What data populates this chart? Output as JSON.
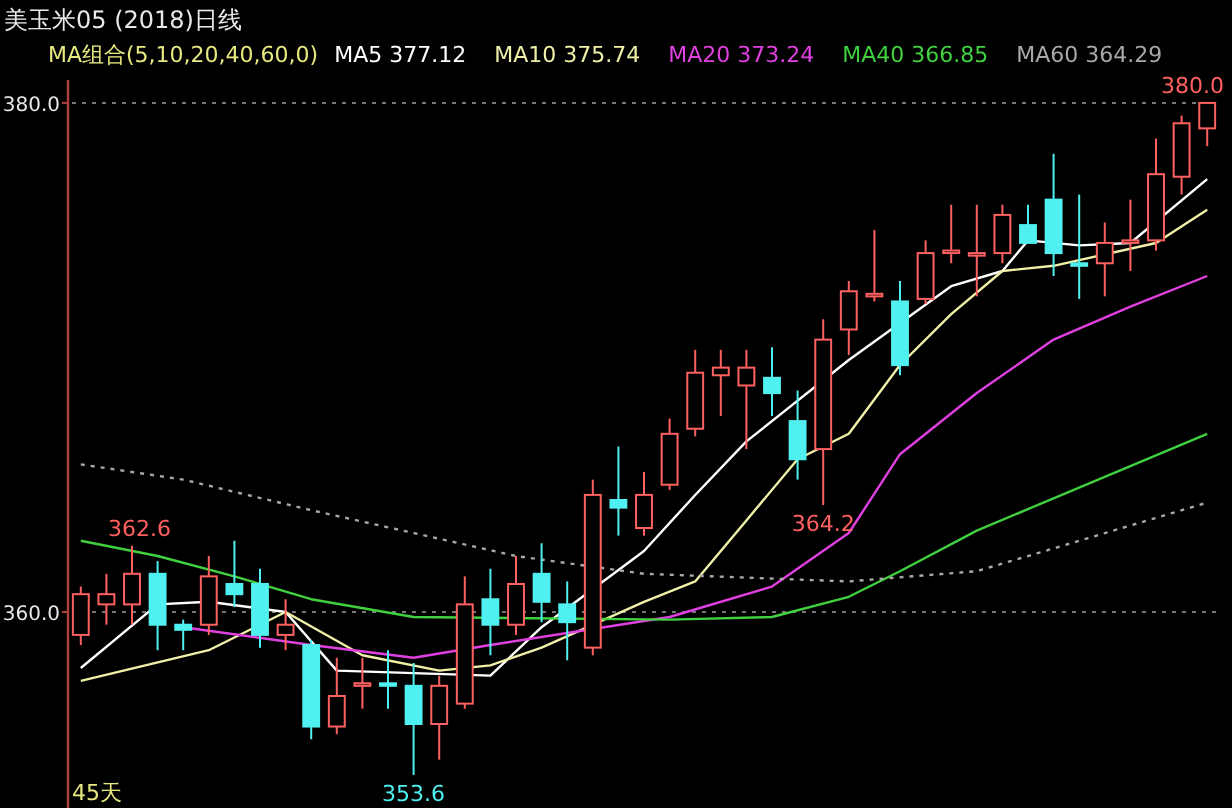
{
  "chart_data": {
    "type": "candlestick",
    "title": "美玉米05 (2018)日线",
    "subtitle": "MA组合(5,10,20,40,60,0)",
    "categories": [
      null,
      null,
      null,
      null,
      null,
      null,
      null,
      null,
      null,
      null,
      null,
      null,
      null,
      null,
      null,
      null,
      null,
      null,
      null,
      null,
      null,
      null,
      null,
      null,
      null,
      null,
      null,
      null,
      null,
      null,
      null,
      null,
      null,
      null,
      null,
      null,
      null,
      null,
      null,
      null,
      null,
      null,
      null,
      null,
      null
    ],
    "ohlc": [
      [
        359.1,
        361.0,
        358.7,
        360.7
      ],
      [
        360.3,
        361.5,
        359.5,
        360.7
      ],
      [
        360.3,
        362.6,
        359.5,
        361.5
      ],
      [
        361.5,
        362.0,
        358.5,
        359.5
      ],
      [
        359.5,
        359.7,
        358.5,
        359.3
      ],
      [
        359.5,
        362.2,
        359.1,
        361.4
      ],
      [
        361.1,
        362.8,
        360.2,
        360.7
      ],
      [
        361.1,
        361.7,
        358.6,
        359.1
      ],
      [
        359.1,
        360.5,
        358.5,
        359.5
      ],
      [
        358.7,
        358.9,
        355.0,
        355.5
      ],
      [
        355.5,
        358.2,
        355.2,
        356.7
      ],
      [
        357.1,
        358.2,
        356.2,
        357.2
      ],
      [
        357.2,
        358.5,
        356.2,
        357.1
      ],
      [
        357.1,
        358.0,
        353.6,
        355.6
      ],
      [
        355.6,
        357.5,
        354.2,
        357.1
      ],
      [
        356.4,
        361.4,
        356.2,
        360.3
      ],
      [
        360.5,
        361.7,
        358.3,
        359.5
      ],
      [
        359.5,
        362.2,
        359.1,
        361.1
      ],
      [
        361.5,
        362.7,
        359.6,
        360.4
      ],
      [
        360.3,
        361.2,
        358.1,
        359.6
      ],
      [
        358.6,
        365.2,
        358.3,
        364.6
      ],
      [
        364.4,
        366.5,
        363.0,
        364.1
      ],
      [
        363.3,
        365.5,
        363.0,
        364.6
      ],
      [
        365.0,
        367.6,
        364.8,
        367.0
      ],
      [
        367.2,
        370.3,
        366.9,
        369.4
      ],
      [
        369.3,
        370.3,
        367.7,
        369.6
      ],
      [
        368.9,
        370.3,
        366.4,
        369.6
      ],
      [
        369.2,
        370.4,
        367.7,
        368.6
      ],
      [
        367.5,
        368.7,
        365.2,
        366.0
      ],
      [
        366.4,
        371.5,
        364.2,
        370.7
      ],
      [
        371.1,
        373.0,
        370.1,
        372.6
      ],
      [
        372.4,
        375.0,
        372.2,
        372.5
      ],
      [
        372.2,
        373.0,
        369.3,
        369.7
      ],
      [
        372.3,
        374.6,
        372.1,
        374.1
      ],
      [
        374.1,
        376.0,
        373.7,
        374.2
      ],
      [
        374.0,
        376.0,
        372.4,
        374.1
      ],
      [
        374.1,
        376.0,
        373.7,
        375.6
      ],
      [
        375.2,
        376.0,
        374.5,
        374.5
      ],
      [
        376.2,
        378.0,
        373.2,
        374.1
      ],
      [
        373.7,
        376.4,
        372.3,
        373.6
      ],
      [
        373.7,
        375.3,
        372.4,
        374.5
      ],
      [
        374.5,
        376.2,
        373.4,
        374.6
      ],
      [
        374.6,
        378.6,
        374.2,
        377.2
      ],
      [
        377.1,
        379.5,
        376.4,
        379.2
      ],
      [
        379.0,
        380.0,
        378.3,
        380.0
      ]
    ],
    "colors": [
      "#ff6060",
      "#ff6060",
      "#ff6060",
      "#50f0f0",
      "#50f0f0",
      "#ff6060",
      "#50f0f0",
      "#50f0f0",
      "#ff6060",
      "#50f0f0",
      "#ff6060",
      "#ff6060",
      "#50f0f0",
      "#50f0f0",
      "#ff6060",
      "#ff6060",
      "#50f0f0",
      "#ff6060",
      "#50f0f0",
      "#50f0f0",
      "#ff6060",
      "#50f0f0",
      "#ff6060",
      "#ff6060",
      "#ff6060",
      "#ff6060",
      "#ff6060",
      "#50f0f0",
      "#50f0f0",
      "#ff6060",
      "#ff6060",
      "#ff6060",
      "#50f0f0",
      "#ff6060",
      "#ff6060",
      "#ff6060",
      "#ff6060",
      "#50f0f0",
      "#50f0f0",
      "#50f0f0",
      "#ff6060",
      "#ff6060",
      "#ff6060",
      "#ff6060",
      "#ff6060"
    ],
    "series": [
      {
        "type": "line",
        "name": "MA5 377.12",
        "color": "#ffffff",
        "values": [
          357.8,
          null,
          null,
          360.3,
          null,
          360.4,
          null,
          null,
          360.0,
          null,
          357.7,
          null,
          null,
          null,
          null,
          null,
          357.5,
          null,
          359.4,
          null,
          null,
          null,
          362.4,
          null,
          364.6,
          null,
          366.7,
          null,
          null,
          null,
          369.9,
          null,
          null,
          null,
          372.8,
          null,
          373.4,
          374.6,
          null,
          374.4,
          null,
          374.5,
          null,
          null,
          377.0
        ]
      },
      {
        "type": "line",
        "name": "MA10 375.74",
        "color": "#f0f0a8",
        "values": [
          357.3,
          null,
          null,
          null,
          null,
          358.5,
          null,
          null,
          360.0,
          null,
          null,
          358.3,
          null,
          null,
          357.7,
          null,
          357.9,
          null,
          358.6,
          null,
          null,
          null,
          360.4,
          null,
          361.2,
          null,
          363.6,
          null,
          366.0,
          null,
          367.0,
          null,
          369.7,
          null,
          371.7,
          null,
          373.4,
          null,
          373.6,
          null,
          null,
          null,
          374.5,
          null,
          375.8
        ]
      },
      {
        "type": "line",
        "name": "MA20 373.24",
        "color": "#e040e0",
        "values": [
          null,
          null,
          null,
          null,
          359.4,
          null,
          null,
          null,
          null,
          358.7,
          null,
          null,
          null,
          358.2,
          null,
          null,
          358.7,
          null,
          null,
          null,
          null,
          null,
          null,
          359.8,
          null,
          null,
          null,
          361.0,
          null,
          null,
          363.1,
          null,
          366.2,
          null,
          null,
          368.6,
          null,
          null,
          370.7,
          null,
          null,
          372.0,
          null,
          null,
          373.2
        ]
      },
      {
        "type": "line",
        "name": "MA40 366.85",
        "color": "#40d040",
        "values": [
          362.8,
          null,
          null,
          362.2,
          null,
          null,
          361.4,
          null,
          null,
          360.5,
          null,
          null,
          null,
          359.8,
          null,
          null,
          null,
          null,
          null,
          null,
          null,
          null,
          null,
          359.7,
          null,
          null,
          null,
          359.8,
          null,
          null,
          360.6,
          null,
          361.6,
          null,
          null,
          363.2,
          null,
          null,
          null,
          null,
          null,
          null,
          null,
          null,
          367.0
        ]
      },
      {
        "type": "line",
        "name": "MA60 364.29",
        "color": "#a8a8a8",
        "line_style": "dotted",
        "values": [
          365.8,
          null,
          null,
          null,
          365.2,
          null,
          null,
          null,
          null,
          364.0,
          null,
          null,
          null,
          363.1,
          null,
          null,
          null,
          362.2,
          null,
          null,
          null,
          null,
          361.5,
          null,
          null,
          null,
          null,
          null,
          null,
          null,
          361.2,
          null,
          null,
          null,
          null,
          361.6,
          null,
          null,
          null,
          362.8,
          null,
          null,
          null,
          null,
          364.3
        ]
      }
    ],
    "ylim": [
      352.3,
      380.9
    ],
    "yticks": [
      {
        "value": 380,
        "label": "380.0"
      },
      {
        "value": 360,
        "label": "360.0"
      }
    ],
    "grid": "y",
    "legend": "top",
    "annotations": [
      {
        "text": "362.6",
        "y": 362.6
      },
      {
        "text": "353.6",
        "y": 353.6
      },
      {
        "text": "364.2",
        "y": 364.2
      },
      {
        "text": "380.0",
        "y": 380.0
      },
      "45天"
    ]
  }
}
